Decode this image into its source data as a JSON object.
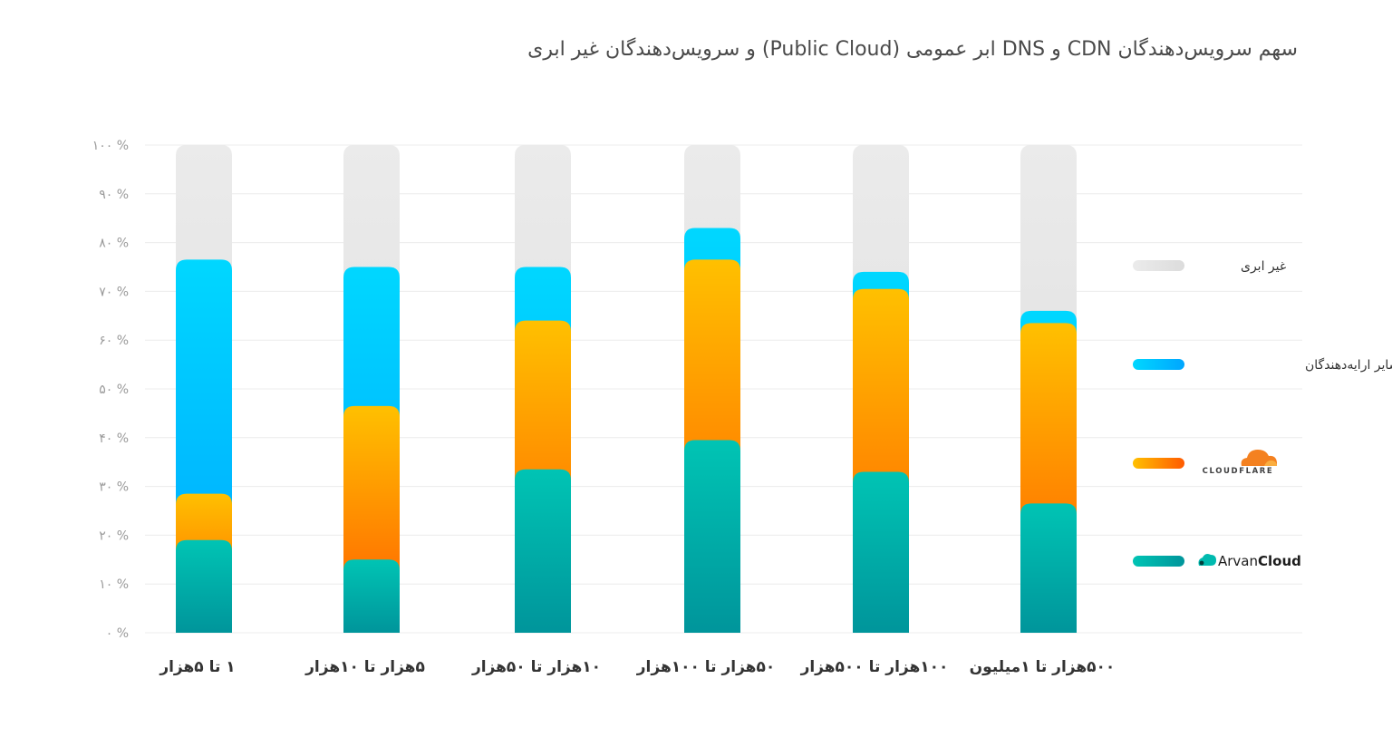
{
  "title": "سهم سرویس‌دهندگان CDN و DNS ابر عمومی (Public Cloud) و سرویس‌دهندگان غیر ابری",
  "chart_data": {
    "type": "bar",
    "stacked": true,
    "title": "سهم سرویس‌دهندگان CDN و DNS ابر عمومی (Public Cloud) و سرویس‌دهندگان غیر ابری",
    "xlabel": "",
    "ylabel": "",
    "ylim": [
      0,
      100
    ],
    "yticks": [
      "۰ %",
      "۱۰ %",
      "۲۰ %",
      "۳۰ %",
      "۴۰ %",
      "۵۰ %",
      "۶۰ %",
      "۷۰ %",
      "۸۰ %",
      "۹۰ %",
      "۱۰۰ %"
    ],
    "grid": true,
    "legend_position": "right",
    "categories": [
      "۱ تا ۵هزار",
      "۵هزار تا ۱۰هزار",
      "۱۰هزار تا ۵۰هزار",
      "۵۰هزار تا ۱۰۰هزار",
      "۱۰۰هزار تا ۵۰۰هزار",
      "۵۰۰هزار تا ۱میلیون"
    ],
    "series": [
      {
        "name": "ArvanCloud",
        "values": [
          19,
          15,
          33.5,
          39.5,
          33,
          26.5
        ],
        "color_top": "#00c4b4",
        "color_bottom": "#00959b"
      },
      {
        "name": "CLOUDFLARE",
        "values": [
          9.5,
          31.5,
          30.5,
          37,
          37.5,
          37
        ],
        "color_top": "#ffc000",
        "color_bottom": "#ff5a00"
      },
      {
        "name": "سایر ارایه‌دهندگان",
        "values": [
          48,
          28.5,
          11,
          6.5,
          3.5,
          2.5
        ],
        "color_top": "#00d7ff",
        "color_bottom": "#00a6ff"
      },
      {
        "name": "غیر ابری",
        "values": [
          23.5,
          25,
          25,
          17,
          26,
          34
        ],
        "color_top": "#ebebeb",
        "color_bottom": "#dcdcdc"
      }
    ],
    "legend": [
      {
        "label": "غیر ابری",
        "series_index": 3
      },
      {
        "label": "سایر ارایه‌دهندگان",
        "series_index": 2
      },
      {
        "label": "CLOUDFLARE",
        "series_index": 1,
        "logo": "cloudflare-logo"
      },
      {
        "label": "ArvanCloud",
        "label_light": "Arvan",
        "label_bold": "Cloud",
        "series_index": 0,
        "logo": "arvancloud-logo"
      }
    ]
  }
}
